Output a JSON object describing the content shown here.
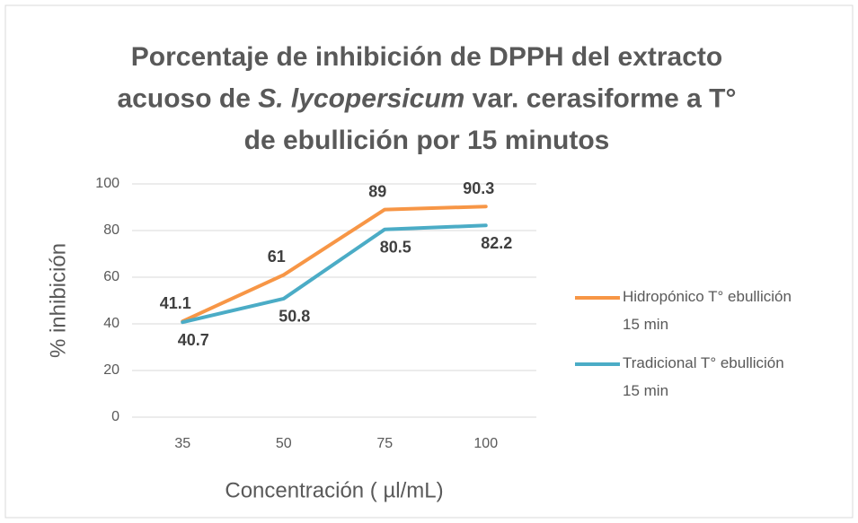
{
  "chart_data": {
    "type": "line",
    "title": [
      [
        {
          "text": "Porcentaje de inhibición de DPPH del extracto",
          "italic": false
        }
      ],
      [
        {
          "text": "acuoso de ",
          "italic": false
        },
        {
          "text": "S. lycopersicum",
          "italic": true
        },
        {
          "text": " var. cerasiforme a T°",
          "italic": false
        }
      ],
      [
        {
          "text": "de ebullición por 15 minutos",
          "italic": false
        }
      ]
    ],
    "x_label": "Concentración ( µl/mL)",
    "y_label": "% inhibición",
    "categories": [
      "35",
      "50",
      "75",
      "100"
    ],
    "series": [
      {
        "name": "Hidropónico T° ebullición 15 min",
        "color": "#f79646",
        "label_position": "above",
        "values": [
          41.1,
          61,
          89,
          90.3
        ]
      },
      {
        "name": "Tradicional T° ebullición 15 min",
        "color": "#4bacc6",
        "label_position": "below",
        "values": [
          40.7,
          50.8,
          80.5,
          82.2
        ]
      }
    ],
    "ylim": [
      0,
      100
    ],
    "yticks": [
      0,
      20,
      40,
      60,
      80,
      100
    ],
    "grid": true,
    "legend": "right"
  }
}
